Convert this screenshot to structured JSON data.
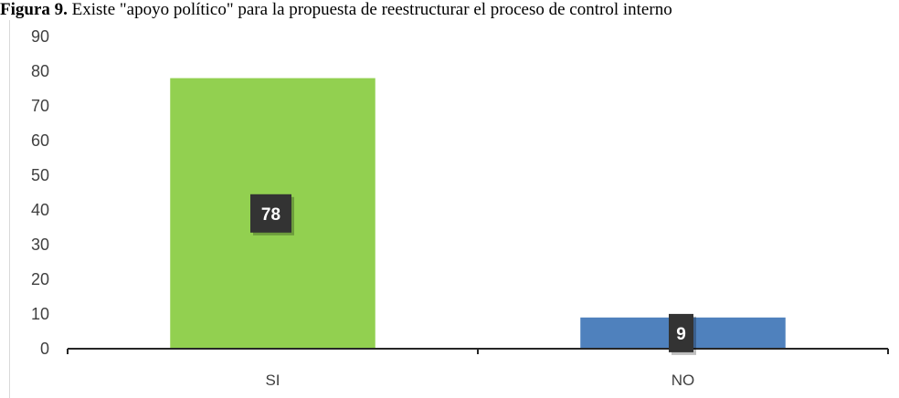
{
  "caption": {
    "label": "Figura 9.",
    "text": " Existe \"apoyo político\" para la propuesta de reestructurar el proceso de control interno"
  },
  "chart_data": {
    "type": "bar",
    "categories": [
      "SI",
      "NO"
    ],
    "values": [
      78,
      9
    ],
    "data_labels": [
      "78",
      "9"
    ],
    "bar_colors": [
      "#92d050",
      "#4f81bd"
    ],
    "label_box_color": "#333333",
    "ylim": [
      0,
      90
    ],
    "yticks": [
      0,
      10,
      20,
      30,
      40,
      50,
      60,
      70,
      80,
      90
    ],
    "grid": false,
    "legend": "none"
  }
}
